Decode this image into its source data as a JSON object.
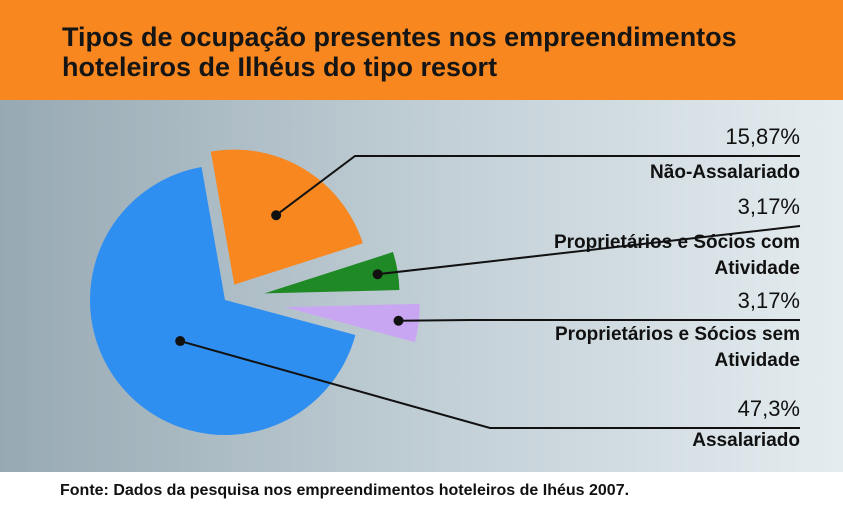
{
  "chart_data": {
    "type": "pie",
    "title": "Tipos de ocupação presentes nos empreendimentos hoteleiros de Ilhéus do tipo resort",
    "categories": [
      "Não-Assalariado",
      "Proprietários e Sócios com Atividade",
      "Proprietários e Sócios sem Atividade",
      "Assalariado"
    ],
    "values": [
      15.87,
      3.17,
      3.17,
      47.3
    ],
    "value_labels": [
      "15,87%",
      "3,17%",
      "3,17%",
      "47,3%"
    ],
    "colors": [
      "#f7871e",
      "#1f8a25",
      "#c9a6f2",
      "#2f8ff0"
    ],
    "source": "Fonte: Dados da pesquisa nos empreendimentos hoteleiros de Ihéus 2007."
  }
}
